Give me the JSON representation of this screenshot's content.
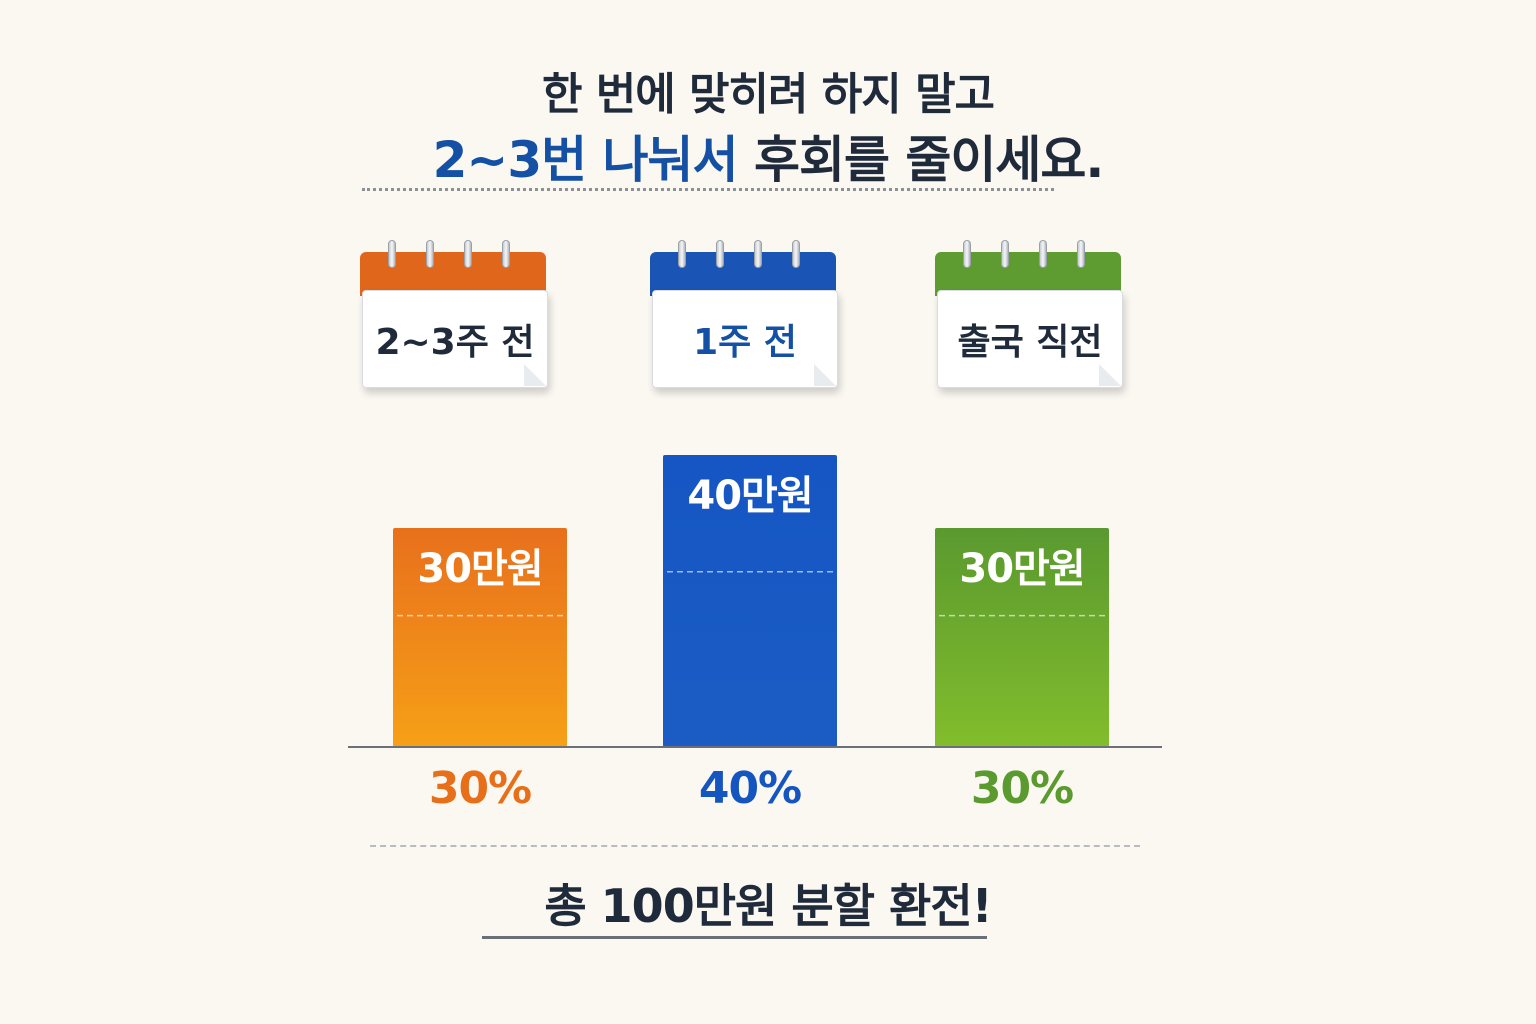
{
  "headline": {
    "line1": "한 번에 맞히려 하지 말고",
    "line2_highlight": "2~3번 나눠서",
    "line2_rest": " 후회를 줄이세요."
  },
  "colors": {
    "text_dark": "#1f2a3b",
    "highlight_blue": "#1450a3",
    "orange": "#e86f1a",
    "blue": "#1555c0",
    "green": "#5a9a2e"
  },
  "chart_data": {
    "type": "bar",
    "categories": [
      "2~3주 전",
      "1주 전",
      "출국 직전"
    ],
    "values": [
      30,
      40,
      30
    ],
    "value_labels": [
      "30만원",
      "40만원",
      "30만원"
    ],
    "percent_labels": [
      "30%",
      "40%",
      "30%"
    ],
    "unit": "만원",
    "ylim": [
      0,
      40
    ],
    "grid": false,
    "legend": "none"
  },
  "calendars": [
    {
      "label": "2~3주 전",
      "color": "#e0661c"
    },
    {
      "label": "1주 전",
      "color": "#1a55b5"
    },
    {
      "label": "출국 직전",
      "color": "#5e9b31"
    }
  ],
  "summary": {
    "text": "총 100만원 분할 환전!"
  }
}
